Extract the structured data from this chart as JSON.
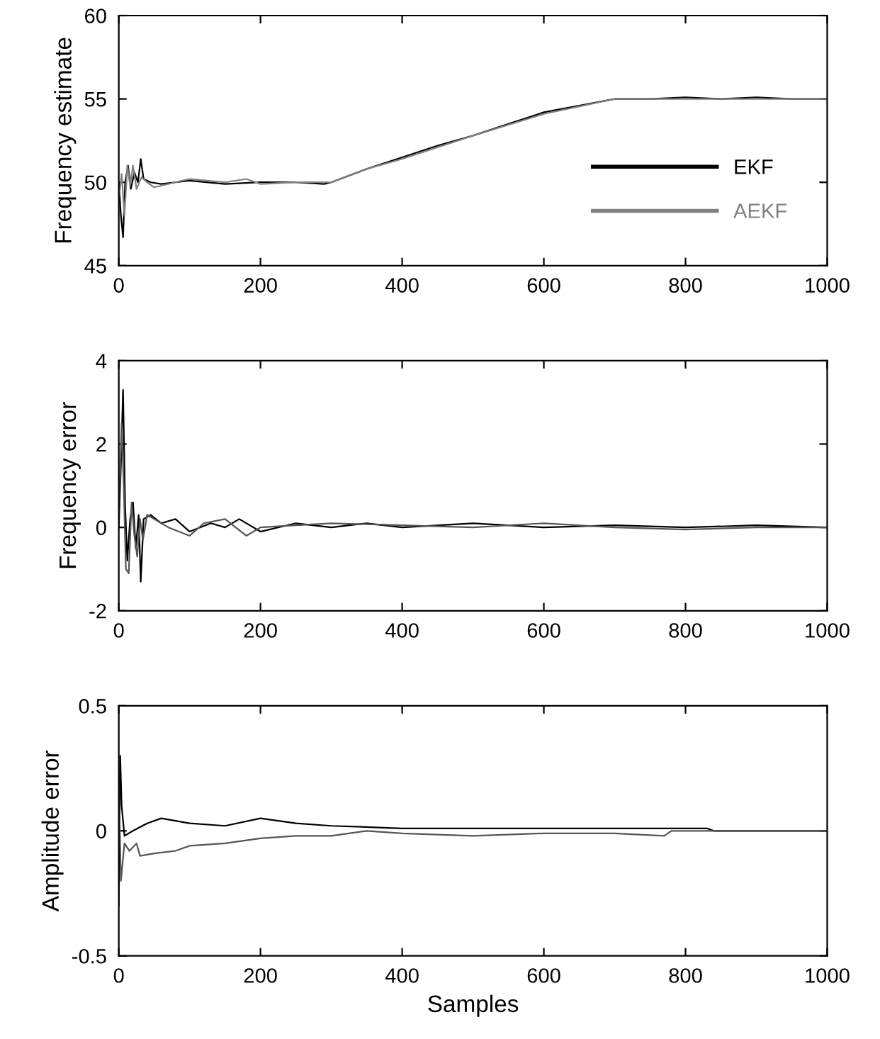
{
  "chart_data": [
    {
      "type": "line",
      "ylabel": "Frequency estimate",
      "xlim": [
        0,
        1000
      ],
      "xticks": [
        0,
        200,
        400,
        600,
        800,
        1000
      ],
      "ylim": [
        45,
        60
      ],
      "yticks": [
        45,
        50,
        55,
        60
      ],
      "grid": false,
      "legend": "right",
      "series": [
        {
          "name": "EKF",
          "color": "#000000",
          "x": [
            0,
            3,
            6,
            9,
            13,
            17,
            22,
            27,
            31,
            35,
            45,
            60,
            100,
            150,
            200,
            250,
            290,
            300,
            350,
            400,
            450,
            500,
            550,
            600,
            650,
            700,
            750,
            800,
            850,
            900,
            950,
            1000
          ],
          "values": [
            50,
            48,
            46.7,
            50,
            51,
            49.6,
            50.6,
            50,
            51.4,
            50.2,
            50,
            49.9,
            50.1,
            49.9,
            50,
            50,
            49.9,
            50,
            50.8,
            51.5,
            52.2,
            52.8,
            53.5,
            54.2,
            54.6,
            55,
            55,
            55.1,
            55,
            55.1,
            55,
            55
          ]
        },
        {
          "name": "AEKF",
          "color": "#808080",
          "x": [
            0,
            4,
            8,
            12,
            16,
            20,
            25,
            32,
            40,
            50,
            80,
            100,
            150,
            180,
            200,
            250,
            300,
            350,
            400,
            500,
            600,
            700,
            800,
            900,
            1000
          ],
          "values": [
            49,
            50.5,
            48,
            51,
            49.8,
            51,
            49.6,
            50.3,
            50,
            49.7,
            50,
            50.2,
            50,
            50.2,
            49.9,
            50,
            50,
            50.8,
            51.4,
            52.8,
            54.1,
            55,
            55,
            55,
            55
          ]
        }
      ]
    },
    {
      "type": "line",
      "ylabel": "Frequency error",
      "xlim": [
        0,
        1000
      ],
      "xticks": [
        0,
        200,
        400,
        600,
        800,
        1000
      ],
      "ylim": [
        -2,
        4
      ],
      "yticks": [
        -2,
        0,
        2,
        4
      ],
      "grid": false,
      "series": [
        {
          "color": "#000000",
          "x": [
            0,
            3,
            6,
            9,
            12,
            16,
            20,
            24,
            28,
            31,
            35,
            45,
            60,
            80,
            100,
            130,
            150,
            170,
            200,
            250,
            300,
            350,
            400,
            500,
            600,
            700,
            800,
            900,
            1000
          ],
          "values": [
            0,
            1.5,
            3.3,
            0.5,
            -0.8,
            0.2,
            0.6,
            -0.5,
            0.3,
            -1.3,
            0.2,
            0.3,
            0.1,
            0.2,
            -0.1,
            0.1,
            0,
            0.2,
            -0.1,
            0.1,
            0,
            0.1,
            0,
            0.1,
            0,
            0.05,
            0,
            0.05,
            0
          ]
        },
        {
          "color": "#555555",
          "x": [
            0,
            4,
            7,
            10,
            14,
            18,
            22,
            26,
            30,
            34,
            40,
            50,
            70,
            100,
            120,
            150,
            180,
            200,
            250,
            300,
            400,
            500,
            600,
            700,
            800,
            900,
            1000
          ],
          "values": [
            0.3,
            2.5,
            1,
            -1,
            -1.1,
            0.6,
            -0.2,
            -0.7,
            0.2,
            -0.3,
            0.3,
            0.2,
            0,
            -0.2,
            0.1,
            0.2,
            -0.2,
            0,
            0.05,
            0.1,
            0.05,
            0,
            0.1,
            0,
            -0.05,
            0,
            0
          ]
        }
      ]
    },
    {
      "type": "line",
      "ylabel": "Amplitude error",
      "xlabel": "Samples",
      "xlim": [
        0,
        1000
      ],
      "xticks": [
        0,
        200,
        400,
        600,
        800,
        1000
      ],
      "ylim": [
        -0.5,
        0.5
      ],
      "yticks": [
        -0.5,
        0,
        0.5
      ],
      "grid": false,
      "series": [
        {
          "color": "#000000",
          "x": [
            0,
            2,
            4,
            8,
            20,
            40,
            60,
            80,
            100,
            150,
            200,
            250,
            300,
            400,
            500,
            600,
            700,
            800,
            830,
            840,
            1000
          ],
          "values": [
            -0.3,
            0.3,
            0.1,
            -0.02,
            0,
            0.03,
            0.05,
            0.04,
            0.03,
            0.02,
            0.05,
            0.03,
            0.02,
            0.01,
            0.01,
            0.01,
            0.01,
            0.01,
            0.01,
            0,
            0
          ]
        },
        {
          "color": "#555555",
          "x": [
            0,
            3,
            8,
            15,
            25,
            30,
            50,
            80,
            100,
            150,
            200,
            250,
            300,
            350,
            400,
            500,
            600,
            700,
            770,
            780,
            830,
            1000
          ],
          "values": [
            0.2,
            -0.2,
            -0.05,
            -0.08,
            -0.05,
            -0.1,
            -0.09,
            -0.08,
            -0.06,
            -0.05,
            -0.03,
            -0.02,
            -0.02,
            0,
            -0.01,
            -0.02,
            -0.01,
            -0.01,
            -0.02,
            0,
            0,
            0
          ]
        }
      ]
    }
  ]
}
